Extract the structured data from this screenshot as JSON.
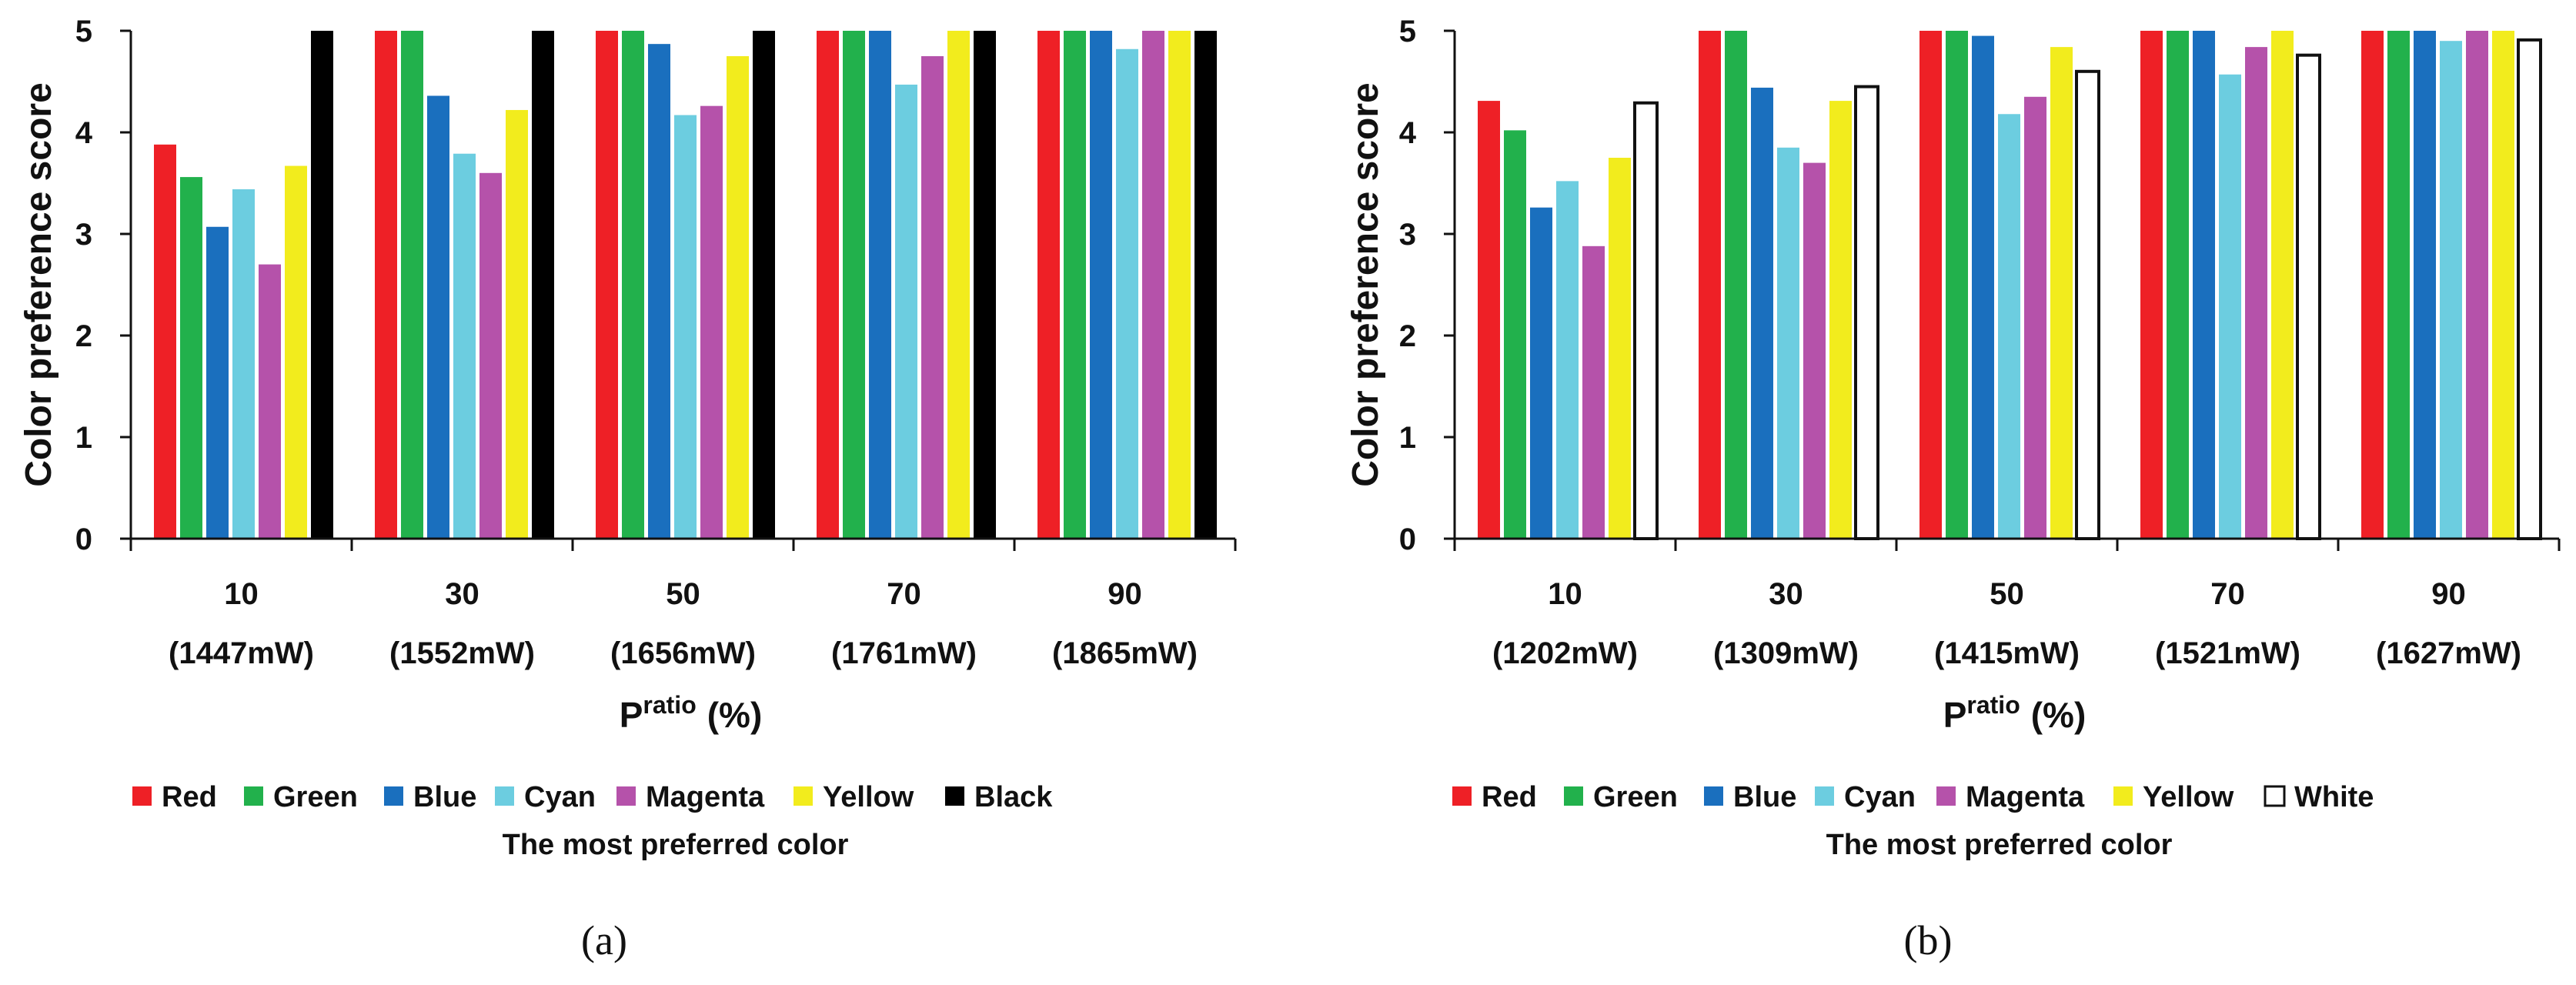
{
  "chart_data": [
    {
      "type": "bar",
      "caption": "(a)",
      "ylabel": "Color preference score",
      "xlabel_main": "P",
      "xlabel_sup": "ratio",
      "xlabel_unit": "(%)",
      "ylim": [
        0,
        5
      ],
      "yticks": [
        "0",
        "1",
        "2",
        "3",
        "4",
        "5"
      ],
      "categories": [
        "10",
        "30",
        "50",
        "70",
        "90"
      ],
      "category_sublabels": [
        "(1447mW)",
        "(1552mW)",
        "(1656mW)",
        "(1761mW)",
        "(1865mW)"
      ],
      "legend_title": "The most preferred color",
      "series": [
        {
          "name": "Red",
          "color": "#ee2026",
          "values": [
            3.88,
            5,
            5,
            5,
            5
          ]
        },
        {
          "name": "Green",
          "color": "#22b14c",
          "values": [
            3.56,
            5,
            5,
            5,
            5
          ]
        },
        {
          "name": "Blue",
          "color": "#1a6fbe",
          "values": [
            3.07,
            4.36,
            4.87,
            5,
            5
          ]
        },
        {
          "name": "Cyan",
          "color": "#6ccde0",
          "values": [
            3.44,
            3.79,
            4.17,
            4.47,
            4.82
          ]
        },
        {
          "name": "Magenta",
          "color": "#b552aa",
          "values": [
            2.7,
            3.6,
            4.26,
            4.75,
            5
          ]
        },
        {
          "name": "Yellow",
          "color": "#f2ec1d",
          "values": [
            3.67,
            4.22,
            4.75,
            5,
            5
          ]
        },
        {
          "name": "Black",
          "color": "#000000",
          "values": [
            5,
            5,
            5,
            5,
            5
          ]
        }
      ]
    },
    {
      "type": "bar",
      "caption": "(b)",
      "ylabel": "Color preference score",
      "xlabel_main": "P",
      "xlabel_sup": "ratio",
      "xlabel_unit": "(%)",
      "ylim": [
        0,
        5
      ],
      "yticks": [
        "0",
        "1",
        "2",
        "3",
        "4",
        "5"
      ],
      "categories": [
        "10",
        "30",
        "50",
        "70",
        "90"
      ],
      "category_sublabels": [
        "(1202mW)",
        "(1309mW)",
        "(1415mW)",
        "(1521mW)",
        "(1627mW)"
      ],
      "legend_title": "The most preferred color",
      "series": [
        {
          "name": "Red",
          "color": "#ee2026",
          "values": [
            4.31,
            5,
            5,
            5,
            5
          ]
        },
        {
          "name": "Green",
          "color": "#22b14c",
          "values": [
            4.02,
            5,
            5,
            5,
            5
          ]
        },
        {
          "name": "Blue",
          "color": "#1a6fbe",
          "values": [
            3.26,
            4.44,
            4.95,
            5,
            5
          ]
        },
        {
          "name": "Cyan",
          "color": "#6ccde0",
          "values": [
            3.52,
            3.85,
            4.18,
            4.57,
            4.9
          ]
        },
        {
          "name": "Magenta",
          "color": "#b552aa",
          "values": [
            2.88,
            3.7,
            4.35,
            4.84,
            5
          ]
        },
        {
          "name": "Yellow",
          "color": "#f2ec1d",
          "values": [
            3.75,
            4.31,
            4.84,
            5,
            5
          ]
        },
        {
          "name": "White",
          "color": "#ffffff",
          "values": [
            4.29,
            4.45,
            4.6,
            4.76,
            4.91
          ]
        }
      ]
    }
  ]
}
